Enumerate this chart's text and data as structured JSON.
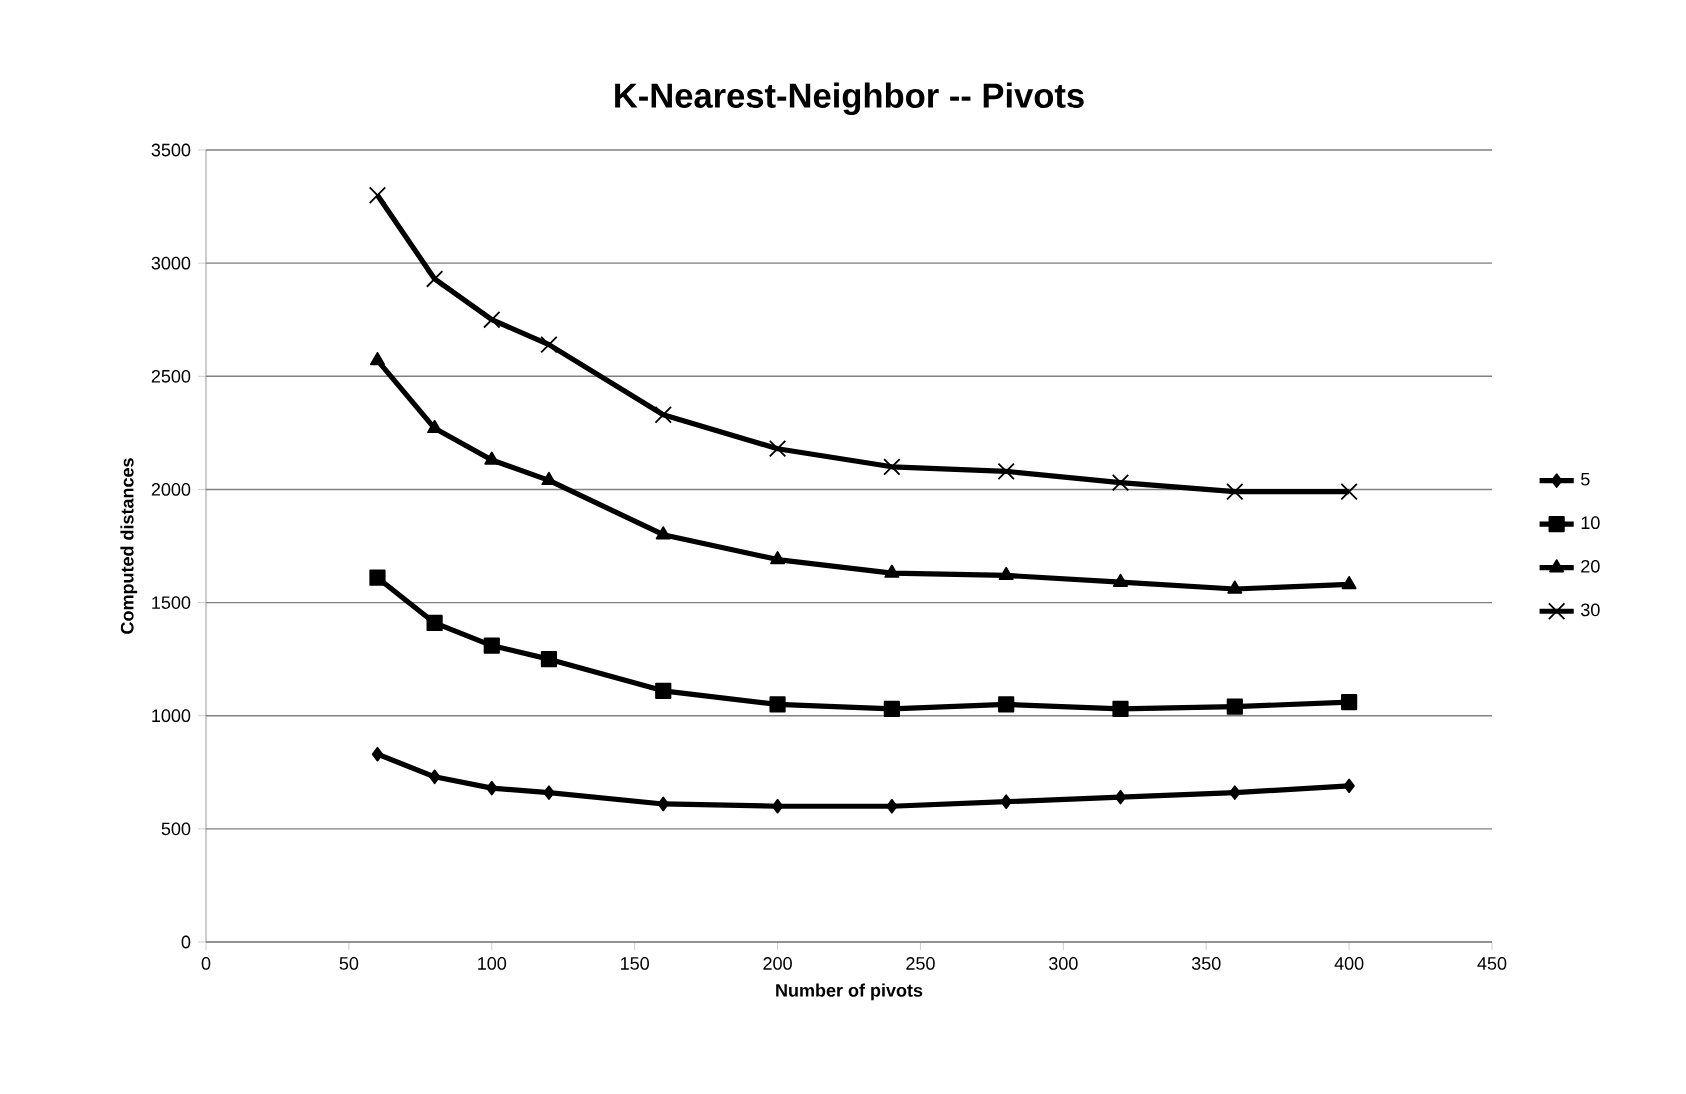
{
  "chart_data": {
    "type": "line",
    "title": "K-Nearest-Neighbor -- Pivots",
    "xlabel": "Number of pivots",
    "ylabel": "Computed distances",
    "x": [
      60,
      80,
      100,
      120,
      160,
      200,
      240,
      280,
      320,
      360,
      400
    ],
    "series": [
      {
        "name": "5",
        "color": "#000000",
        "marker": "diamond",
        "values": [
          830,
          730,
          680,
          660,
          610,
          600,
          600,
          620,
          640,
          660,
          690
        ]
      },
      {
        "name": "10",
        "color": "#000000",
        "marker": "square",
        "values": [
          1610,
          1410,
          1310,
          1250,
          1110,
          1050,
          1030,
          1050,
          1030,
          1040,
          1060
        ]
      },
      {
        "name": "20",
        "color": "#000000",
        "marker": "triangle",
        "values": [
          2570,
          2270,
          2130,
          2040,
          1800,
          1690,
          1630,
          1620,
          1590,
          1560,
          1580
        ]
      },
      {
        "name": "30",
        "color": "#000000",
        "marker": "cross",
        "values": [
          3300,
          2930,
          2750,
          2640,
          2330,
          2180,
          2100,
          2080,
          2030,
          1990,
          1990
        ]
      }
    ],
    "xlim": [
      0,
      450
    ],
    "xticks": [
      0,
      50,
      100,
      150,
      200,
      250,
      300,
      350,
      400,
      450
    ],
    "ylim": [
      0,
      3500
    ],
    "yticks": [
      0,
      500,
      1000,
      1500,
      2000,
      2500,
      3000,
      3500
    ],
    "grid": "y",
    "legend": "right",
    "line_style": "solid"
  }
}
